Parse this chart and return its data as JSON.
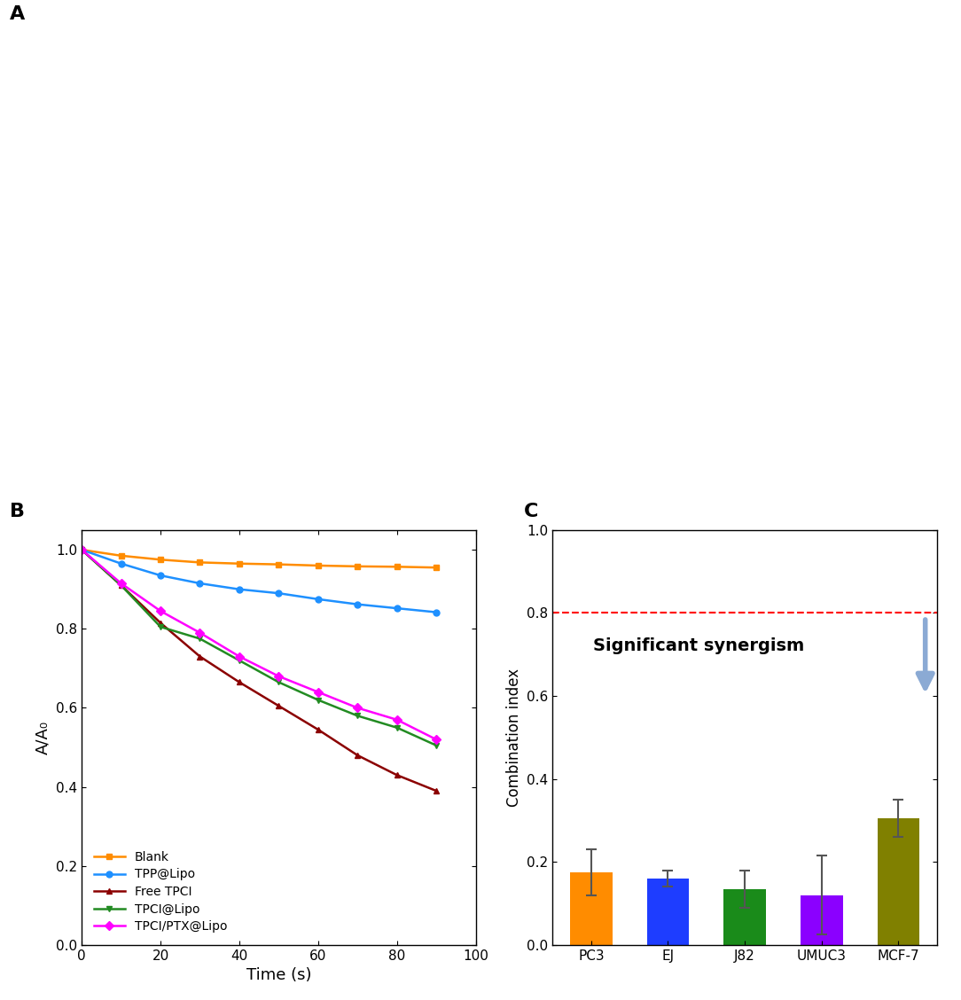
{
  "panel_B": {
    "xlabel": "Time (s)",
    "ylabel": "A/A₀",
    "xlim": [
      0,
      100
    ],
    "ylim": [
      0.0,
      1.05
    ],
    "xticks": [
      0,
      20,
      40,
      60,
      80,
      100
    ],
    "yticks": [
      0.0,
      0.2,
      0.4,
      0.6,
      0.8,
      1.0
    ],
    "series": {
      "Blank": {
        "color": "#FF8C00",
        "marker": "s",
        "x": [
          0,
          10,
          20,
          30,
          40,
          50,
          60,
          70,
          80,
          90
        ],
        "y": [
          1.0,
          0.985,
          0.975,
          0.968,
          0.965,
          0.963,
          0.96,
          0.958,
          0.957,
          0.955
        ]
      },
      "TPP@Lipo": {
        "color": "#1E90FF",
        "marker": "o",
        "x": [
          0,
          10,
          20,
          30,
          40,
          50,
          60,
          70,
          80,
          90
        ],
        "y": [
          1.0,
          0.965,
          0.935,
          0.915,
          0.9,
          0.89,
          0.875,
          0.862,
          0.852,
          0.842
        ]
      },
      "Free TPCI": {
        "color": "#8B0000",
        "marker": "^",
        "x": [
          0,
          10,
          20,
          30,
          40,
          50,
          60,
          70,
          80,
          90
        ],
        "y": [
          1.0,
          0.91,
          0.815,
          0.73,
          0.665,
          0.605,
          0.545,
          0.48,
          0.43,
          0.39
        ]
      },
      "TPCI@Lipo": {
        "color": "#228B22",
        "marker": "v",
        "x": [
          0,
          10,
          20,
          30,
          40,
          50,
          60,
          70,
          80,
          90
        ],
        "y": [
          1.0,
          0.91,
          0.805,
          0.775,
          0.72,
          0.665,
          0.62,
          0.58,
          0.55,
          0.505
        ]
      },
      "TPCI/PTX@Lipo": {
        "color": "#FF00FF",
        "marker": "D",
        "x": [
          0,
          10,
          20,
          30,
          40,
          50,
          60,
          70,
          80,
          90
        ],
        "y": [
          1.0,
          0.915,
          0.845,
          0.79,
          0.73,
          0.68,
          0.64,
          0.6,
          0.57,
          0.52
        ]
      }
    }
  },
  "panel_C": {
    "ylabel": "Combination index",
    "ylim": [
      0.0,
      1.0
    ],
    "yticks": [
      0.0,
      0.2,
      0.4,
      0.6,
      0.8,
      1.0
    ],
    "dashed_line_y": 0.8,
    "annotation_text": "Significant synergism",
    "categories": [
      "PC3",
      "EJ",
      "J82",
      "UMUC3",
      "MCF-7"
    ],
    "values": [
      0.175,
      0.16,
      0.135,
      0.12,
      0.305
    ],
    "errors": [
      0.055,
      0.02,
      0.045,
      0.095,
      0.045
    ],
    "bar_colors": [
      "#FF8C00",
      "#1E3DFF",
      "#1A8B1A",
      "#8B00FF",
      "#808000"
    ]
  },
  "label_A": "A",
  "label_B": "B",
  "label_C": "C",
  "figure_bg": "#ffffff",
  "panel_A_bg": "#000000"
}
